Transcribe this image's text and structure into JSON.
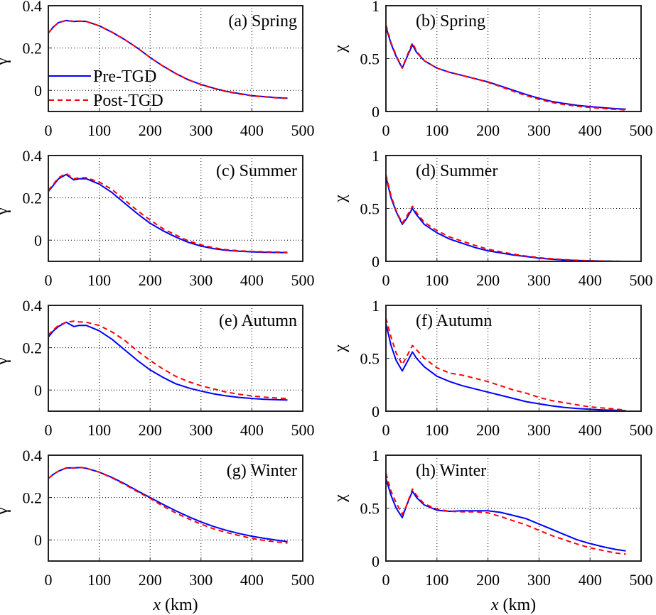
{
  "chart_data": [
    {
      "panel": "a",
      "title": "(a) Spring",
      "type": "line",
      "xlabel": "",
      "ylabel": "γ",
      "xlim": [
        0,
        500
      ],
      "ylim": [
        -0.1,
        0.4
      ],
      "xticks": [
        "0",
        "100",
        "200",
        "300",
        "400",
        "500"
      ],
      "yticks": [
        "0",
        "0.2",
        "0.4"
      ],
      "ytick_values": [
        0,
        0.2,
        0.4
      ],
      "grid": true,
      "legend": {
        "placement": "bottom-left",
        "entries": [
          "Pre-TGD",
          "Post-TGD"
        ]
      },
      "x": [
        0,
        10,
        20,
        35,
        50,
        60,
        75,
        100,
        125,
        150,
        175,
        200,
        225,
        250,
        275,
        300,
        325,
        350,
        375,
        400,
        425,
        450,
        470
      ],
      "series": [
        {
          "name": "Pre-TGD",
          "color": "#0000ff",
          "style": "solid",
          "values": [
            0.27,
            0.3,
            0.32,
            0.33,
            0.325,
            0.327,
            0.325,
            0.305,
            0.275,
            0.24,
            0.2,
            0.155,
            0.115,
            0.08,
            0.05,
            0.028,
            0.01,
            -0.005,
            -0.015,
            -0.025,
            -0.03,
            -0.035,
            -0.037
          ]
        },
        {
          "name": "Post-TGD",
          "color": "#ff0000",
          "style": "dashed",
          "values": [
            0.27,
            0.3,
            0.32,
            0.33,
            0.326,
            0.327,
            0.325,
            0.305,
            0.275,
            0.24,
            0.2,
            0.155,
            0.115,
            0.08,
            0.05,
            0.027,
            0.009,
            -0.006,
            -0.017,
            -0.026,
            -0.031,
            -0.036,
            -0.038
          ]
        }
      ]
    },
    {
      "panel": "b",
      "title": "(b) Spring",
      "type": "line",
      "xlabel": "",
      "ylabel": "χ",
      "xlim": [
        0,
        500
      ],
      "ylim": [
        0,
        1
      ],
      "xticks": [
        "0",
        "100",
        "200",
        "300",
        "400",
        "500"
      ],
      "yticks": [
        "0",
        "0.5",
        "1"
      ],
      "ytick_values": [
        0,
        0.5,
        1
      ],
      "grid": true,
      "x": [
        0,
        10,
        20,
        32,
        40,
        52,
        60,
        75,
        100,
        125,
        150,
        175,
        200,
        225,
        250,
        275,
        300,
        325,
        350,
        375,
        400,
        425,
        450,
        470
      ],
      "series": [
        {
          "name": "Pre-TGD",
          "color": "#0000ff",
          "style": "solid",
          "values": [
            0.8,
            0.64,
            0.52,
            0.41,
            0.5,
            0.63,
            0.56,
            0.48,
            0.41,
            0.37,
            0.34,
            0.31,
            0.28,
            0.24,
            0.2,
            0.16,
            0.125,
            0.095,
            0.075,
            0.058,
            0.046,
            0.036,
            0.027,
            0.022
          ]
        },
        {
          "name": "Post-TGD",
          "color": "#ff0000",
          "style": "dashed",
          "values": [
            0.82,
            0.65,
            0.53,
            0.41,
            0.51,
            0.65,
            0.57,
            0.48,
            0.41,
            0.37,
            0.34,
            0.31,
            0.275,
            0.235,
            0.19,
            0.15,
            0.115,
            0.085,
            0.065,
            0.05,
            0.038,
            0.028,
            0.02,
            0.015
          ]
        }
      ]
    },
    {
      "panel": "c",
      "title": "(c) Summer",
      "type": "line",
      "xlabel": "",
      "ylabel": "γ",
      "xlim": [
        0,
        500
      ],
      "ylim": [
        -0.1,
        0.4
      ],
      "xticks": [
        "0",
        "100",
        "200",
        "300",
        "400",
        "500"
      ],
      "yticks": [
        "0",
        "0.2",
        "0.4"
      ],
      "ytick_values": [
        0,
        0.2,
        0.4
      ],
      "grid": true,
      "x": [
        0,
        10,
        20,
        35,
        50,
        60,
        75,
        100,
        125,
        150,
        175,
        200,
        225,
        250,
        275,
        300,
        325,
        350,
        375,
        400,
        425,
        450,
        470
      ],
      "series": [
        {
          "name": "Pre-TGD",
          "color": "#0000ff",
          "style": "solid",
          "values": [
            0.23,
            0.26,
            0.29,
            0.31,
            0.285,
            0.29,
            0.29,
            0.265,
            0.225,
            0.175,
            0.125,
            0.08,
            0.045,
            0.015,
            -0.01,
            -0.028,
            -0.04,
            -0.048,
            -0.052,
            -0.055,
            -0.057,
            -0.058,
            -0.059
          ]
        },
        {
          "name": "Post-TGD",
          "color": "#ff0000",
          "style": "dashed",
          "values": [
            0.235,
            0.265,
            0.295,
            0.315,
            0.29,
            0.295,
            0.295,
            0.275,
            0.24,
            0.19,
            0.14,
            0.095,
            0.055,
            0.025,
            -0.003,
            -0.022,
            -0.036,
            -0.045,
            -0.05,
            -0.053,
            -0.055,
            -0.056,
            -0.057
          ]
        }
      ]
    },
    {
      "panel": "d",
      "title": "(d) Summer",
      "type": "line",
      "xlabel": "",
      "ylabel": "χ",
      "xlim": [
        0,
        500
      ],
      "ylim": [
        0,
        1
      ],
      "xticks": [
        "0",
        "100",
        "200",
        "300",
        "400",
        "500"
      ],
      "yticks": [
        "0",
        "0.5",
        "1"
      ],
      "ytick_values": [
        0,
        0.5,
        1
      ],
      "grid": true,
      "x": [
        0,
        10,
        20,
        32,
        40,
        52,
        60,
        75,
        100,
        125,
        150,
        175,
        200,
        225,
        250,
        275,
        300,
        325,
        350,
        375,
        400,
        425,
        450,
        470
      ],
      "series": [
        {
          "name": "Pre-TGD",
          "color": "#0000ff",
          "style": "solid",
          "values": [
            0.8,
            0.6,
            0.47,
            0.35,
            0.4,
            0.5,
            0.44,
            0.35,
            0.27,
            0.21,
            0.17,
            0.13,
            0.1,
            0.08,
            0.06,
            0.045,
            0.03,
            0.02,
            0.013,
            0.008,
            0.005,
            0.003,
            0.001,
            0.0
          ]
        },
        {
          "name": "Post-TGD",
          "color": "#ff0000",
          "style": "dashed",
          "values": [
            0.82,
            0.62,
            0.48,
            0.36,
            0.42,
            0.52,
            0.46,
            0.37,
            0.29,
            0.23,
            0.19,
            0.15,
            0.115,
            0.09,
            0.068,
            0.05,
            0.035,
            0.024,
            0.016,
            0.01,
            0.006,
            0.003,
            0.001,
            0.0
          ]
        }
      ]
    },
    {
      "panel": "e",
      "title": "(e) Autumn",
      "type": "line",
      "xlabel": "",
      "ylabel": "γ",
      "xlim": [
        0,
        500
      ],
      "ylim": [
        -0.1,
        0.4
      ],
      "xticks": [
        "0",
        "100",
        "200",
        "300",
        "400",
        "500"
      ],
      "yticks": [
        "0",
        "0.2",
        "0.4"
      ],
      "ytick_values": [
        0,
        0.2,
        0.4
      ],
      "grid": true,
      "x": [
        0,
        10,
        20,
        35,
        50,
        60,
        75,
        100,
        125,
        150,
        175,
        200,
        225,
        250,
        275,
        300,
        325,
        350,
        375,
        400,
        425,
        450,
        470
      ],
      "series": [
        {
          "name": "Pre-TGD",
          "color": "#0000ff",
          "style": "solid",
          "values": [
            0.25,
            0.28,
            0.3,
            0.32,
            0.3,
            0.305,
            0.305,
            0.28,
            0.24,
            0.19,
            0.14,
            0.095,
            0.06,
            0.03,
            0.01,
            -0.005,
            -0.018,
            -0.028,
            -0.035,
            -0.04,
            -0.044,
            -0.046,
            -0.047
          ]
        },
        {
          "name": "Post-TGD",
          "color": "#ff0000",
          "style": "dashed",
          "values": [
            0.26,
            0.285,
            0.305,
            0.32,
            0.325,
            0.322,
            0.32,
            0.305,
            0.275,
            0.235,
            0.185,
            0.14,
            0.1,
            0.065,
            0.04,
            0.02,
            0.005,
            -0.01,
            -0.02,
            -0.028,
            -0.034,
            -0.038,
            -0.04
          ]
        }
      ]
    },
    {
      "panel": "f",
      "title": "(f) Autumn",
      "type": "line",
      "xlabel": "",
      "ylabel": "χ",
      "xlim": [
        0,
        500
      ],
      "ylim": [
        0,
        1
      ],
      "xticks": [
        "0",
        "100",
        "200",
        "300",
        "400",
        "500"
      ],
      "yticks": [
        "0",
        "0.5",
        "1"
      ],
      "ytick_values": [
        0,
        0.5,
        1
      ],
      "grid": true,
      "x": [
        0,
        10,
        20,
        32,
        40,
        52,
        60,
        75,
        100,
        125,
        150,
        175,
        200,
        225,
        250,
        275,
        300,
        325,
        350,
        375,
        400,
        425,
        450,
        470
      ],
      "series": [
        {
          "name": "Pre-TGD",
          "color": "#0000ff",
          "style": "solid",
          "values": [
            0.83,
            0.62,
            0.48,
            0.38,
            0.45,
            0.56,
            0.5,
            0.42,
            0.33,
            0.28,
            0.24,
            0.21,
            0.18,
            0.15,
            0.12,
            0.09,
            0.07,
            0.05,
            0.035,
            0.025,
            0.018,
            0.012,
            0.008,
            0.005
          ]
        },
        {
          "name": "Post-TGD",
          "color": "#ff0000",
          "style": "dashed",
          "values": [
            0.88,
            0.7,
            0.55,
            0.44,
            0.51,
            0.62,
            0.58,
            0.5,
            0.41,
            0.36,
            0.34,
            0.31,
            0.28,
            0.24,
            0.2,
            0.17,
            0.13,
            0.1,
            0.08,
            0.06,
            0.04,
            0.03,
            0.02,
            0.01
          ]
        }
      ]
    },
    {
      "panel": "g",
      "title": "(g) Winter",
      "type": "line",
      "xlabel": "x (km)",
      "ylabel": "γ",
      "xlim": [
        0,
        500
      ],
      "ylim": [
        -0.1,
        0.4
      ],
      "xticks": [
        "0",
        "100",
        "200",
        "300",
        "400",
        "500"
      ],
      "yticks": [
        "0",
        "0.2",
        "0.4"
      ],
      "ytick_values": [
        0,
        0.2,
        0.4
      ],
      "grid": true,
      "x": [
        0,
        10,
        20,
        35,
        50,
        65,
        75,
        100,
        125,
        150,
        175,
        200,
        225,
        250,
        275,
        300,
        325,
        350,
        375,
        400,
        425,
        450,
        470
      ],
      "series": [
        {
          "name": "Pre-TGD",
          "color": "#0000ff",
          "style": "solid",
          "values": [
            0.29,
            0.31,
            0.325,
            0.34,
            0.34,
            0.342,
            0.338,
            0.32,
            0.295,
            0.265,
            0.232,
            0.2,
            0.168,
            0.138,
            0.11,
            0.085,
            0.063,
            0.045,
            0.03,
            0.017,
            0.007,
            -0.002,
            -0.008
          ]
        },
        {
          "name": "Post-TGD",
          "color": "#ff0000",
          "style": "dashed",
          "values": [
            0.29,
            0.31,
            0.325,
            0.34,
            0.34,
            0.342,
            0.338,
            0.32,
            0.293,
            0.262,
            0.228,
            0.196,
            0.16,
            0.128,
            0.1,
            0.074,
            0.052,
            0.035,
            0.02,
            0.007,
            -0.003,
            -0.01,
            -0.015
          ]
        }
      ]
    },
    {
      "panel": "h",
      "title": "(h) Winter",
      "type": "line",
      "xlabel": "x (km)",
      "ylabel": "χ",
      "xlim": [
        0,
        500
      ],
      "ylim": [
        0,
        1
      ],
      "xticks": [
        "0",
        "100",
        "200",
        "300",
        "400",
        "500"
      ],
      "yticks": [
        "0",
        "0.5",
        "1"
      ],
      "ytick_values": [
        0,
        0.5,
        1
      ],
      "grid": true,
      "x": [
        0,
        10,
        20,
        32,
        40,
        52,
        60,
        75,
        100,
        125,
        150,
        175,
        200,
        225,
        250,
        275,
        300,
        325,
        350,
        375,
        400,
        425,
        450,
        470
      ],
      "series": [
        {
          "name": "Pre-TGD",
          "color": "#0000ff",
          "style": "solid",
          "values": [
            0.78,
            0.62,
            0.5,
            0.41,
            0.52,
            0.66,
            0.6,
            0.53,
            0.48,
            0.47,
            0.475,
            0.475,
            0.475,
            0.46,
            0.43,
            0.4,
            0.35,
            0.3,
            0.25,
            0.2,
            0.165,
            0.135,
            0.11,
            0.095
          ]
        },
        {
          "name": "Post-TGD",
          "color": "#ff0000",
          "style": "dashed",
          "values": [
            0.83,
            0.66,
            0.55,
            0.44,
            0.52,
            0.68,
            0.62,
            0.54,
            0.49,
            0.47,
            0.465,
            0.465,
            0.455,
            0.42,
            0.38,
            0.34,
            0.29,
            0.24,
            0.2,
            0.16,
            0.125,
            0.1,
            0.075,
            0.065
          ]
        }
      ]
    }
  ]
}
